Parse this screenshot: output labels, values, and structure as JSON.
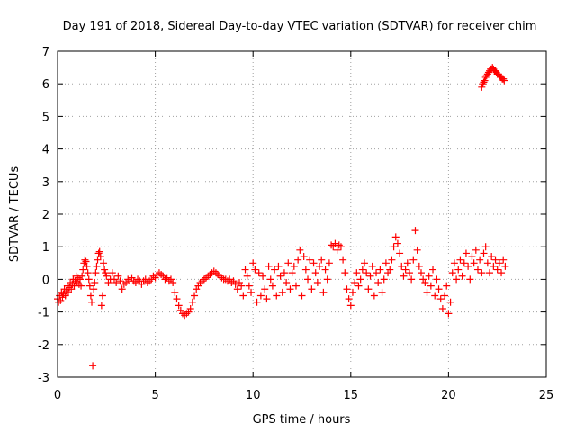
{
  "chart_data": {
    "type": "scatter",
    "title": "Day 191 of 2018, Sidereal Day-to-day VTEC variation (SDTVAR) for receiver chim",
    "xlabel": "GPS time / hours",
    "ylabel": "SDTVAR / TECUs",
    "xlim": [
      0,
      25
    ],
    "ylim": [
      -3,
      7
    ],
    "xticks": [
      0,
      5,
      10,
      15,
      20,
      25
    ],
    "yticks": [
      -3,
      -2,
      -1,
      0,
      1,
      2,
      3,
      4,
      5,
      6,
      7
    ],
    "grid": true,
    "marker": "+",
    "colors": {
      "series": "#ff0000",
      "grid": "#a0a0a0",
      "axis": "#000000"
    },
    "series": [
      {
        "name": "SDTVAR",
        "points": [
          [
            0.0,
            -0.6
          ],
          [
            0.05,
            -0.7
          ],
          [
            0.1,
            -0.5
          ],
          [
            0.15,
            -0.65
          ],
          [
            0.2,
            -0.4
          ],
          [
            0.25,
            -0.55
          ],
          [
            0.3,
            -0.45
          ],
          [
            0.35,
            -0.3
          ],
          [
            0.4,
            -0.5
          ],
          [
            0.45,
            -0.35
          ],
          [
            0.5,
            -0.2
          ],
          [
            0.55,
            -0.4
          ],
          [
            0.6,
            -0.25
          ],
          [
            0.65,
            -0.1
          ],
          [
            0.7,
            -0.3
          ],
          [
            0.75,
            -0.15
          ],
          [
            0.8,
            0.0
          ],
          [
            0.85,
            -0.2
          ],
          [
            0.9,
            -0.05
          ],
          [
            0.95,
            0.1
          ],
          [
            1.0,
            -0.1
          ],
          [
            1.05,
            0.05
          ],
          [
            1.1,
            -0.15
          ],
          [
            1.15,
            0.0
          ],
          [
            1.2,
            -0.2
          ],
          [
            1.25,
            0.1
          ],
          [
            1.3,
            0.3
          ],
          [
            1.35,
            0.5
          ],
          [
            1.4,
            0.6
          ],
          [
            1.45,
            0.55
          ],
          [
            1.5,
            0.4
          ],
          [
            1.55,
            0.2
          ],
          [
            1.6,
            0.0
          ],
          [
            1.65,
            -0.2
          ],
          [
            1.7,
            -0.5
          ],
          [
            1.75,
            -0.7
          ],
          [
            1.8,
            -2.65
          ],
          [
            1.85,
            -0.3
          ],
          [
            1.9,
            -0.1
          ],
          [
            1.95,
            0.2
          ],
          [
            2.0,
            0.4
          ],
          [
            2.05,
            0.6
          ],
          [
            2.1,
            0.8
          ],
          [
            2.15,
            0.85
          ],
          [
            2.2,
            0.7
          ],
          [
            2.25,
            -0.8
          ],
          [
            2.3,
            -0.5
          ],
          [
            2.35,
            0.5
          ],
          [
            2.4,
            0.3
          ],
          [
            2.45,
            0.2
          ],
          [
            2.5,
            0.1
          ],
          [
            2.6,
            -0.1
          ],
          [
            2.7,
            0.0
          ],
          [
            2.8,
            0.2
          ],
          [
            2.9,
            0.0
          ],
          [
            3.0,
            -0.1
          ],
          [
            3.1,
            0.1
          ],
          [
            3.2,
            -0.05
          ],
          [
            3.3,
            -0.3
          ],
          [
            3.4,
            -0.15
          ],
          [
            3.5,
            -0.1
          ],
          [
            3.6,
            0.0
          ],
          [
            3.7,
            -0.05
          ],
          [
            3.8,
            0.05
          ],
          [
            3.9,
            -0.05
          ],
          [
            4.0,
            -0.1
          ],
          [
            4.1,
            0.0
          ],
          [
            4.2,
            -0.05
          ],
          [
            4.3,
            -0.15
          ],
          [
            4.4,
            -0.05
          ],
          [
            4.5,
            0.0
          ],
          [
            4.6,
            -0.1
          ],
          [
            4.7,
            -0.05
          ],
          [
            4.8,
            0.0
          ],
          [
            4.9,
            0.1
          ],
          [
            5.0,
            0.05
          ],
          [
            5.1,
            0.15
          ],
          [
            5.2,
            0.2
          ],
          [
            5.3,
            0.15
          ],
          [
            5.4,
            0.1
          ],
          [
            5.5,
            0.0
          ],
          [
            5.6,
            0.05
          ],
          [
            5.7,
            -0.05
          ],
          [
            5.8,
            0.0
          ],
          [
            5.9,
            -0.1
          ],
          [
            6.0,
            -0.4
          ],
          [
            6.1,
            -0.6
          ],
          [
            6.2,
            -0.8
          ],
          [
            6.3,
            -0.95
          ],
          [
            6.4,
            -1.05
          ],
          [
            6.5,
            -1.1
          ],
          [
            6.6,
            -1.05
          ],
          [
            6.7,
            -1.0
          ],
          [
            6.8,
            -0.9
          ],
          [
            6.9,
            -0.7
          ],
          [
            7.0,
            -0.5
          ],
          [
            7.1,
            -0.3
          ],
          [
            7.2,
            -0.2
          ],
          [
            7.3,
            -0.1
          ],
          [
            7.4,
            -0.05
          ],
          [
            7.5,
            0.0
          ],
          [
            7.6,
            0.05
          ],
          [
            7.7,
            0.1
          ],
          [
            7.8,
            0.15
          ],
          [
            7.9,
            0.2
          ],
          [
            8.0,
            0.25
          ],
          [
            8.1,
            0.2
          ],
          [
            8.2,
            0.15
          ],
          [
            8.3,
            0.1
          ],
          [
            8.4,
            0.05
          ],
          [
            8.5,
            0.0
          ],
          [
            8.6,
            0.0
          ],
          [
            8.7,
            -0.05
          ],
          [
            8.8,
            0.0
          ],
          [
            8.9,
            -0.1
          ],
          [
            9.0,
            -0.05
          ],
          [
            9.1,
            -0.15
          ],
          [
            9.2,
            -0.3
          ],
          [
            9.3,
            -0.1
          ],
          [
            9.4,
            -0.2
          ],
          [
            9.5,
            -0.5
          ],
          [
            9.6,
            0.3
          ],
          [
            9.7,
            0.1
          ],
          [
            9.8,
            -0.2
          ],
          [
            9.9,
            -0.4
          ],
          [
            10.0,
            0.5
          ],
          [
            10.1,
            0.3
          ],
          [
            10.2,
            -0.7
          ],
          [
            10.3,
            0.2
          ],
          [
            10.4,
            -0.5
          ],
          [
            10.5,
            0.1
          ],
          [
            10.6,
            -0.3
          ],
          [
            10.7,
            -0.6
          ],
          [
            10.8,
            0.4
          ],
          [
            10.9,
            0.0
          ],
          [
            11.0,
            -0.2
          ],
          [
            11.1,
            0.3
          ],
          [
            11.2,
            -0.5
          ],
          [
            11.3,
            0.4
          ],
          [
            11.4,
            0.1
          ],
          [
            11.5,
            -0.4
          ],
          [
            11.6,
            0.2
          ],
          [
            11.7,
            -0.1
          ],
          [
            11.8,
            0.5
          ],
          [
            11.9,
            -0.3
          ],
          [
            12.0,
            0.2
          ],
          [
            12.1,
            0.4
          ],
          [
            12.2,
            -0.2
          ],
          [
            12.3,
            0.6
          ],
          [
            12.4,
            0.9
          ],
          [
            12.5,
            -0.5
          ],
          [
            12.6,
            0.7
          ],
          [
            12.7,
            0.3
          ],
          [
            12.8,
            0.0
          ],
          [
            12.9,
            0.6
          ],
          [
            13.0,
            -0.3
          ],
          [
            13.1,
            0.5
          ],
          [
            13.2,
            0.2
          ],
          [
            13.3,
            -0.1
          ],
          [
            13.4,
            0.4
          ],
          [
            13.5,
            0.6
          ],
          [
            13.6,
            -0.4
          ],
          [
            13.7,
            0.3
          ],
          [
            13.8,
            0.0
          ],
          [
            13.9,
            0.5
          ],
          [
            14.0,
            1.05
          ],
          [
            14.1,
            1.0
          ],
          [
            14.2,
            1.1
          ],
          [
            14.3,
            0.9
          ],
          [
            14.4,
            1.05
          ],
          [
            14.5,
            1.0
          ],
          [
            14.6,
            0.6
          ],
          [
            14.7,
            0.2
          ],
          [
            14.8,
            -0.3
          ],
          [
            14.9,
            -0.6
          ],
          [
            15.0,
            -0.8
          ],
          [
            15.1,
            -0.4
          ],
          [
            15.2,
            -0.1
          ],
          [
            15.3,
            0.2
          ],
          [
            15.4,
            -0.2
          ],
          [
            15.5,
            0.0
          ],
          [
            15.6,
            0.3
          ],
          [
            15.7,
            0.5
          ],
          [
            15.8,
            0.2
          ],
          [
            15.9,
            -0.3
          ],
          [
            16.0,
            0.1
          ],
          [
            16.1,
            0.4
          ],
          [
            16.2,
            -0.5
          ],
          [
            16.3,
            0.2
          ],
          [
            16.4,
            -0.1
          ],
          [
            16.5,
            0.3
          ],
          [
            16.6,
            -0.4
          ],
          [
            16.7,
            0.0
          ],
          [
            16.8,
            0.5
          ],
          [
            16.9,
            0.2
          ],
          [
            17.0,
            0.3
          ],
          [
            17.1,
            0.6
          ],
          [
            17.2,
            1.0
          ],
          [
            17.3,
            1.3
          ],
          [
            17.4,
            1.1
          ],
          [
            17.5,
            0.8
          ],
          [
            17.6,
            0.4
          ],
          [
            17.7,
            0.1
          ],
          [
            17.8,
            0.3
          ],
          [
            17.9,
            0.5
          ],
          [
            18.0,
            0.2
          ],
          [
            18.1,
            0.0
          ],
          [
            18.2,
            0.6
          ],
          [
            18.3,
            1.5
          ],
          [
            18.4,
            0.9
          ],
          [
            18.5,
            0.4
          ],
          [
            18.6,
            0.2
          ],
          [
            18.7,
            0.0
          ],
          [
            18.8,
            -0.1
          ],
          [
            18.9,
            -0.4
          ],
          [
            19.0,
            0.1
          ],
          [
            19.1,
            -0.2
          ],
          [
            19.2,
            0.3
          ],
          [
            19.3,
            -0.5
          ],
          [
            19.4,
            0.0
          ],
          [
            19.5,
            -0.3
          ],
          [
            19.6,
            -0.6
          ],
          [
            19.7,
            -0.9
          ],
          [
            19.8,
            -0.5
          ],
          [
            19.9,
            -0.2
          ],
          [
            20.0,
            -1.05
          ],
          [
            20.1,
            -0.7
          ],
          [
            20.2,
            0.2
          ],
          [
            20.3,
            0.5
          ],
          [
            20.4,
            0.0
          ],
          [
            20.5,
            0.3
          ],
          [
            20.6,
            0.6
          ],
          [
            20.7,
            0.1
          ],
          [
            20.8,
            0.5
          ],
          [
            20.9,
            0.8
          ],
          [
            21.0,
            0.4
          ],
          [
            21.1,
            0.0
          ],
          [
            21.2,
            0.7
          ],
          [
            21.3,
            0.5
          ],
          [
            21.4,
            0.9
          ],
          [
            21.5,
            0.3
          ],
          [
            21.6,
            0.6
          ],
          [
            21.7,
            0.2
          ],
          [
            21.8,
            0.8
          ],
          [
            21.9,
            1.0
          ],
          [
            22.0,
            0.5
          ],
          [
            22.1,
            0.2
          ],
          [
            22.2,
            0.7
          ],
          [
            22.3,
            0.4
          ],
          [
            22.4,
            0.6
          ],
          [
            22.5,
            0.3
          ],
          [
            22.6,
            0.5
          ],
          [
            22.7,
            0.2
          ],
          [
            22.8,
            0.6
          ],
          [
            22.9,
            0.4
          ],
          [
            21.7,
            5.9
          ],
          [
            21.75,
            6.0
          ],
          [
            21.8,
            6.05
          ],
          [
            21.85,
            6.1
          ],
          [
            21.9,
            6.2
          ],
          [
            21.95,
            6.25
          ],
          [
            22.0,
            6.3
          ],
          [
            22.05,
            6.35
          ],
          [
            22.1,
            6.4
          ],
          [
            22.15,
            6.45
          ],
          [
            22.2,
            6.45
          ],
          [
            22.25,
            6.5
          ],
          [
            22.3,
            6.45
          ],
          [
            22.35,
            6.4
          ],
          [
            22.4,
            6.4
          ],
          [
            22.45,
            6.35
          ],
          [
            22.5,
            6.3
          ],
          [
            22.55,
            6.3
          ],
          [
            22.6,
            6.25
          ],
          [
            22.65,
            6.2
          ],
          [
            22.7,
            6.2
          ],
          [
            22.75,
            6.15
          ],
          [
            22.8,
            6.15
          ],
          [
            22.85,
            6.1
          ]
        ]
      }
    ]
  }
}
